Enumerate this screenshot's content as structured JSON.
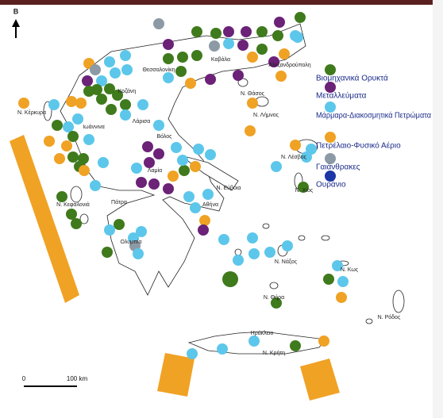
{
  "map": {
    "north": "Β",
    "scale": {
      "start": "0",
      "end": "100 km"
    },
    "legend": [
      {
        "label": "Βιομηχανικά Ορυκτά",
        "color": "#3f7a1c"
      },
      {
        "label": "Μεταλλεύματα",
        "color": "#6b2277"
      },
      {
        "label": "Μάρμαρα-Διακοσμητικά Πετρώματα",
        "color": "#5cc7ea"
      },
      {
        "label": "Πετρέλαιο-Φυσικό Αέριο",
        "color": "#f0a224"
      },
      {
        "label": "Γαιάνθρακες",
        "color": "#8c9aa6"
      },
      {
        "label": "Ουράνιο",
        "color": "#1c36a6"
      }
    ],
    "places": [
      {
        "name": "Ν. Κέρκυρα"
      },
      {
        "name": "Ιωάννινα"
      },
      {
        "name": "Κοζάνη"
      },
      {
        "name": "Θεσσαλονίκη"
      },
      {
        "name": "Καβάλα"
      },
      {
        "name": "Αλεξανδρούπολη"
      },
      {
        "name": "Ν. Θάσος"
      },
      {
        "name": "Ν. Λήμνος"
      },
      {
        "name": "Λάρισα"
      },
      {
        "name": "Βόλος"
      },
      {
        "name": "Λαμία"
      },
      {
        "name": "Ν. Εύβοια"
      },
      {
        "name": "Αθήνα"
      },
      {
        "name": "Πάτρα"
      },
      {
        "name": "Ν. Κεφαλονιά"
      },
      {
        "name": "Ολυμπία"
      },
      {
        "name": "Ν. Λέσβος"
      },
      {
        "name": "Ν. Χίος"
      },
      {
        "name": "Ν. Νάξος"
      },
      {
        "name": "Ν. Θήρα"
      },
      {
        "name": "Ν. Κως"
      },
      {
        "name": "Ν. Ρόδος"
      },
      {
        "name": "Ηράκλειο"
      },
      {
        "name": "Ν. Κρήτη"
      }
    ]
  }
}
